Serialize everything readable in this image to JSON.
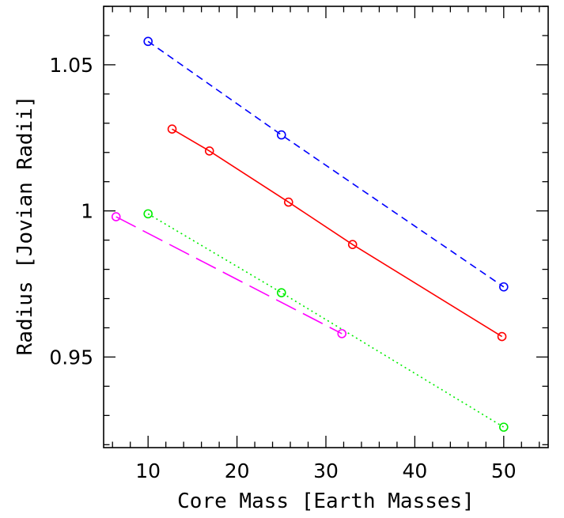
{
  "chart_data": {
    "type": "line",
    "title": "",
    "xlabel": "Core Mass [Earth Masses]",
    "ylabel": "Radius [Jovian Radii]",
    "xlim": [
      5,
      55
    ],
    "ylim": [
      0.919,
      1.07
    ],
    "xticks": {
      "major": [
        10,
        20,
        30,
        40,
        50
      ],
      "major_labels": [
        "10",
        "20",
        "30",
        "40",
        "50"
      ],
      "minor_step": 2
    },
    "yticks": {
      "major": [
        0.95,
        1.0,
        1.05
      ],
      "major_labels": [
        "0.95",
        "1",
        "1.05"
      ],
      "minor_step": 0.01
    },
    "grid": false,
    "legend": "none",
    "series": [
      {
        "color": "#0000ff",
        "dash": "dashed",
        "marker": "open-circle",
        "x": [
          10,
          25,
          50
        ],
        "y": [
          1.058,
          1.026,
          0.974
        ]
      },
      {
        "color": "#ff0000",
        "dash": "solid",
        "marker": "open-circle",
        "x": [
          12.7,
          16.9,
          25.8,
          33.0,
          49.8
        ],
        "y": [
          1.028,
          1.0205,
          1.003,
          0.9885,
          0.957
        ]
      },
      {
        "color": "#00ee00",
        "dash": "dotted",
        "marker": "open-circle",
        "x": [
          10,
          25,
          50
        ],
        "y": [
          0.999,
          0.972,
          0.926
        ]
      },
      {
        "color": "#ff00ff",
        "dash": "long-dashed",
        "marker": "open-circle",
        "x": [
          6.4,
          31.8
        ],
        "y": [
          0.998,
          0.958
        ]
      }
    ]
  }
}
